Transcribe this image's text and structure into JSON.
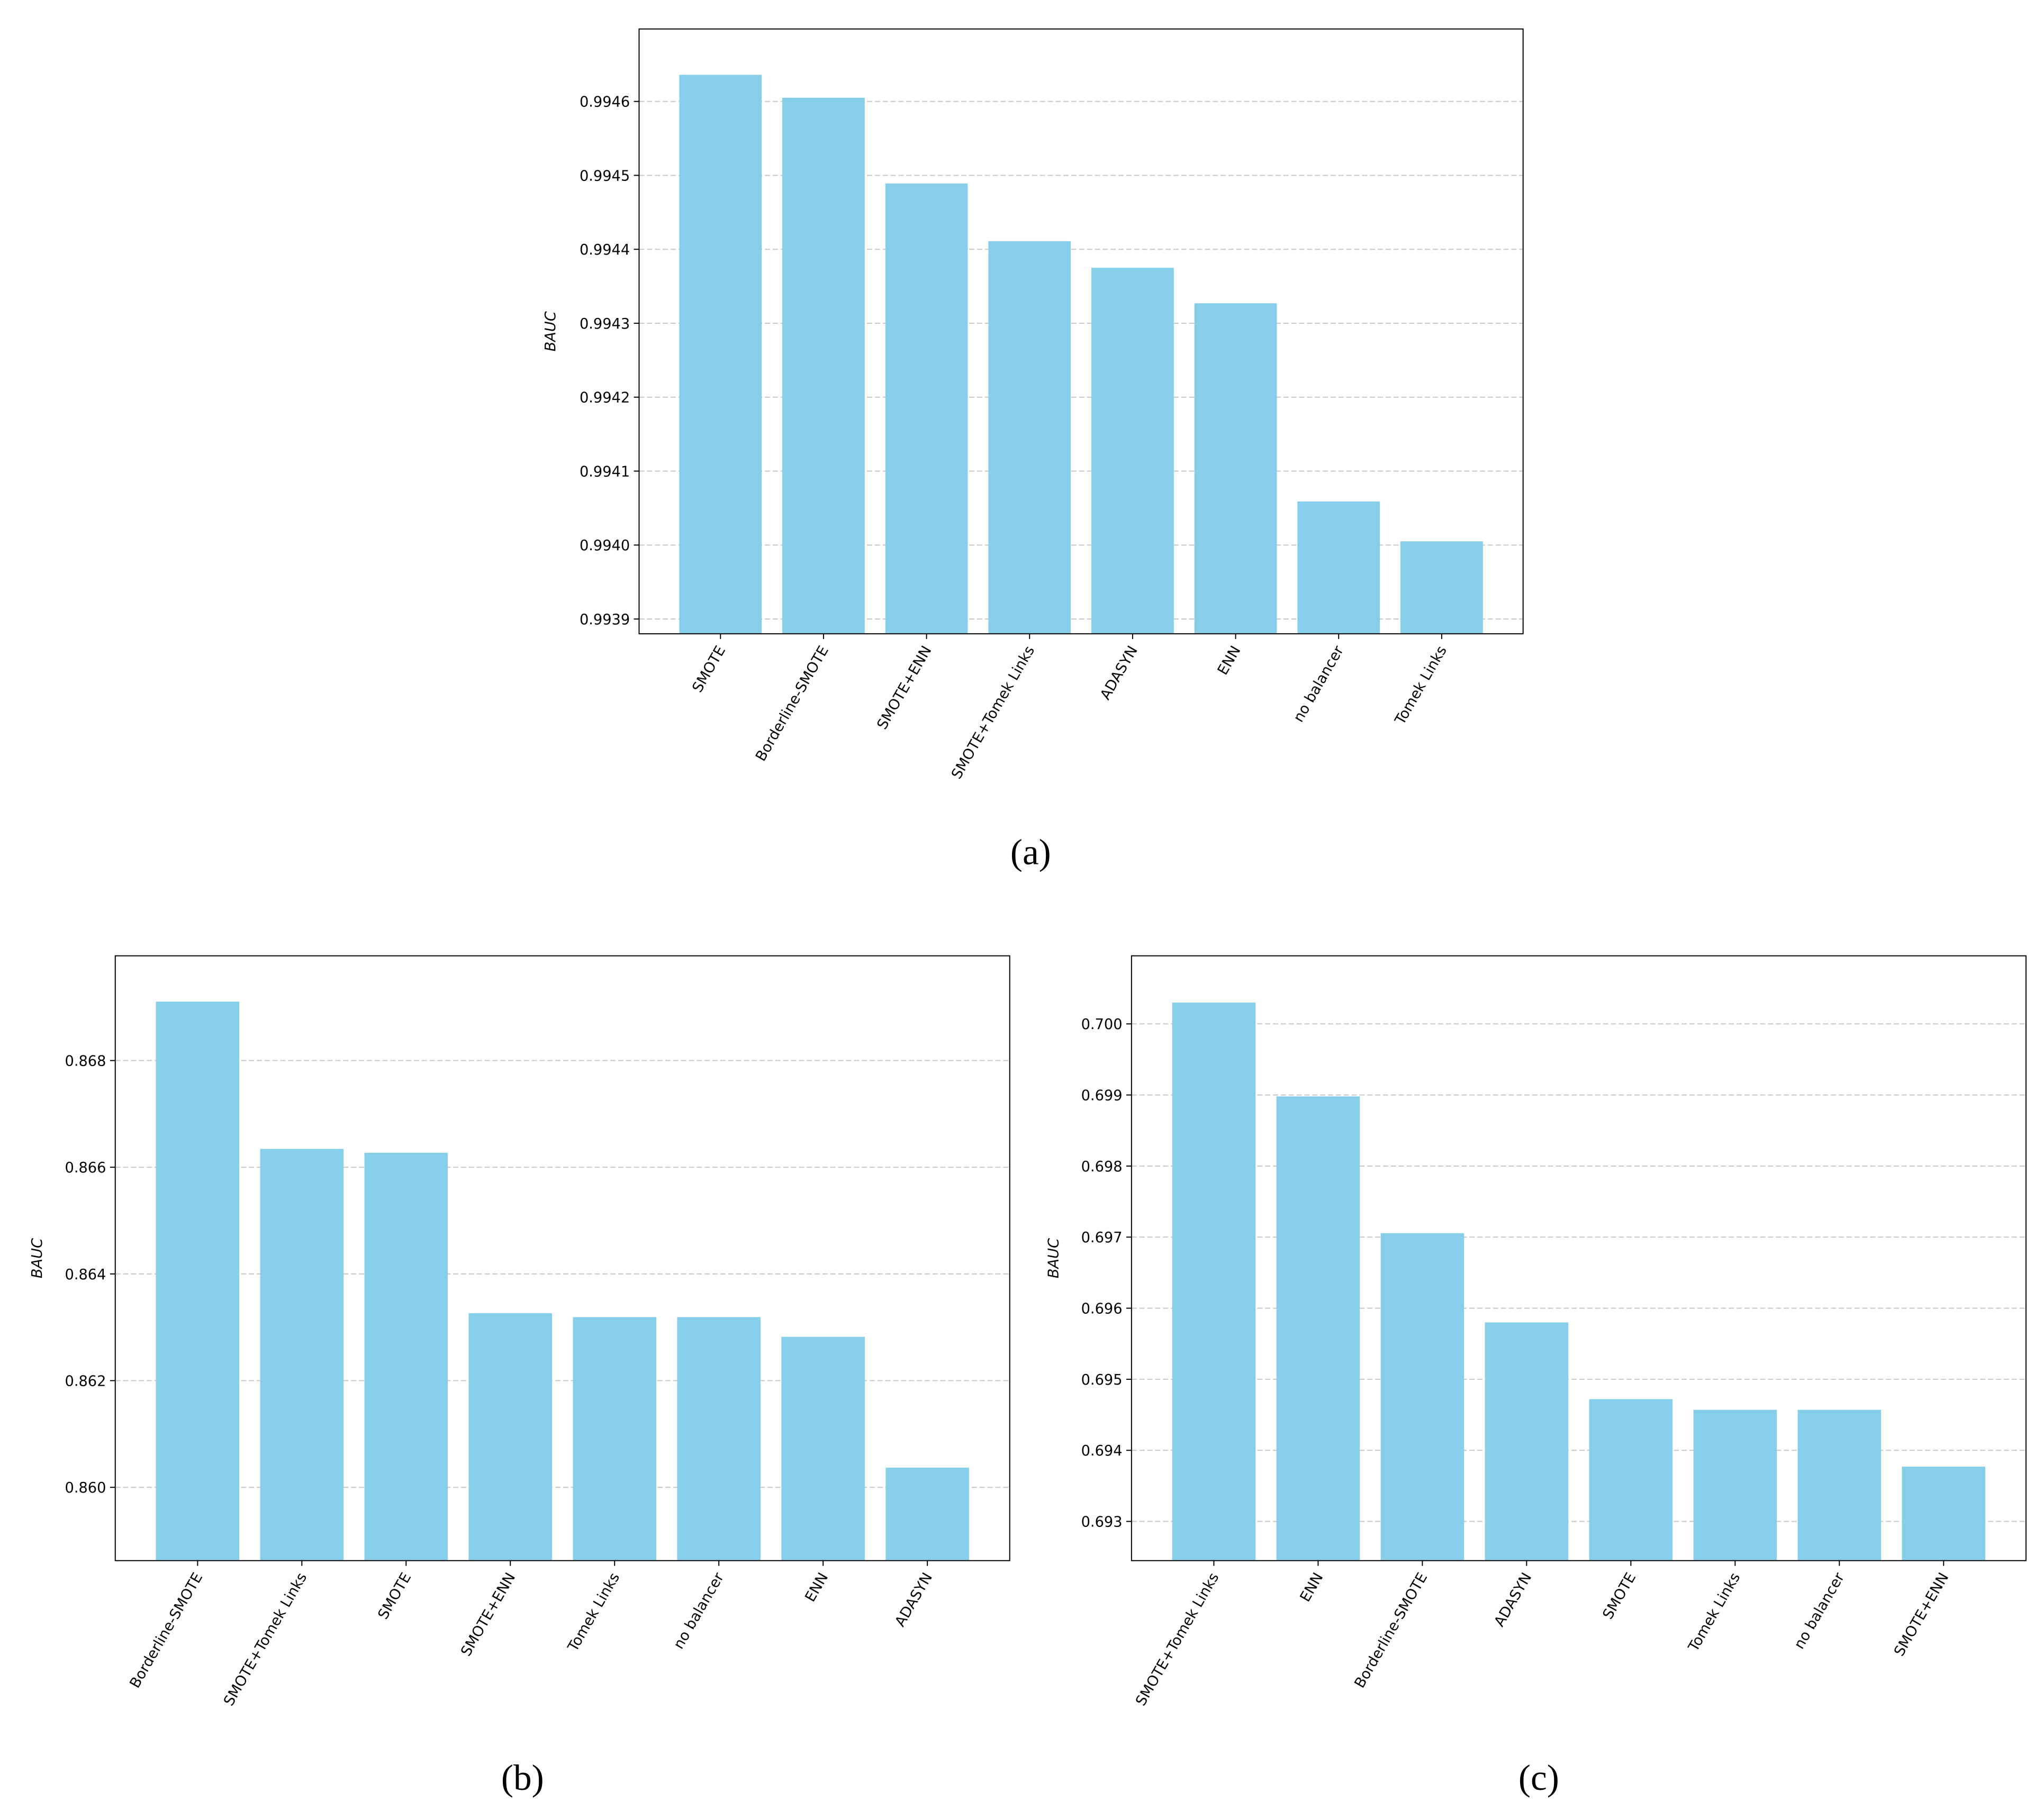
{
  "chart_data": [
    {
      "type": "bar",
      "caption": "(a)",
      "ylabel": "BAUC",
      "color": "#87ceeb",
      "grid": true,
      "categories": [
        "SMOTE",
        "Borderline-SMOTE",
        "SMOTE+ENN",
        "SMOTE+Tomek Links",
        "ADASYN",
        "ENN",
        "no balancer",
        "Tomek Links"
      ],
      "values": [
        0.994636,
        0.994605,
        0.994489,
        0.994411,
        0.994375,
        0.994327,
        0.994059,
        0.994005
      ],
      "ylim": [
        0.99388,
        0.994698
      ],
      "yticks": [
        0.9939,
        {
          "value": 0.994,
          "label": "0.9940"
        },
        0.9941,
        0.9942,
        0.9943,
        0.9944,
        0.9945,
        0.9946
      ]
    },
    {
      "type": "bar",
      "caption": "(b)",
      "ylabel": "BAUC",
      "color": "#87ceeb",
      "grid": true,
      "categories": [
        "Borderline-SMOTE",
        "SMOTE+Tomek Links",
        "SMOTE",
        "SMOTE+ENN",
        "Tomek Links",
        "no balancer",
        "ENN",
        "ADASYN"
      ],
      "values": [
        0.869104,
        0.866344,
        0.86627,
        0.863264,
        0.86319,
        0.86319,
        0.862822,
        0.860368
      ],
      "ylim": [
        0.858626,
        0.869963
      ],
      "yticks": [
        {
          "value": 0.86,
          "label": "0.860"
        },
        0.862,
        0.864,
        0.866,
        0.868
      ]
    },
    {
      "type": "bar",
      "caption": "(c)",
      "ylabel": "BAUC",
      "color": "#87ceeb",
      "grid": true,
      "categories": [
        "SMOTE+Tomek Links",
        "ENN",
        "Borderline-SMOTE",
        "ADASYN",
        "SMOTE",
        "Tomek Links",
        "no balancer",
        "SMOTE+ENN"
      ],
      "values": [
        0.7003,
        0.69898,
        0.697055,
        0.6958,
        0.69472,
        0.69457,
        0.69457,
        0.69377
      ],
      "ylim": [
        0.692448,
        0.700958
      ],
      "yticks": [
        0.693,
        0.694,
        0.695,
        0.696,
        0.697,
        0.698,
        0.699,
        {
          "value": 0.7,
          "label": "0.700"
        }
      ]
    }
  ]
}
